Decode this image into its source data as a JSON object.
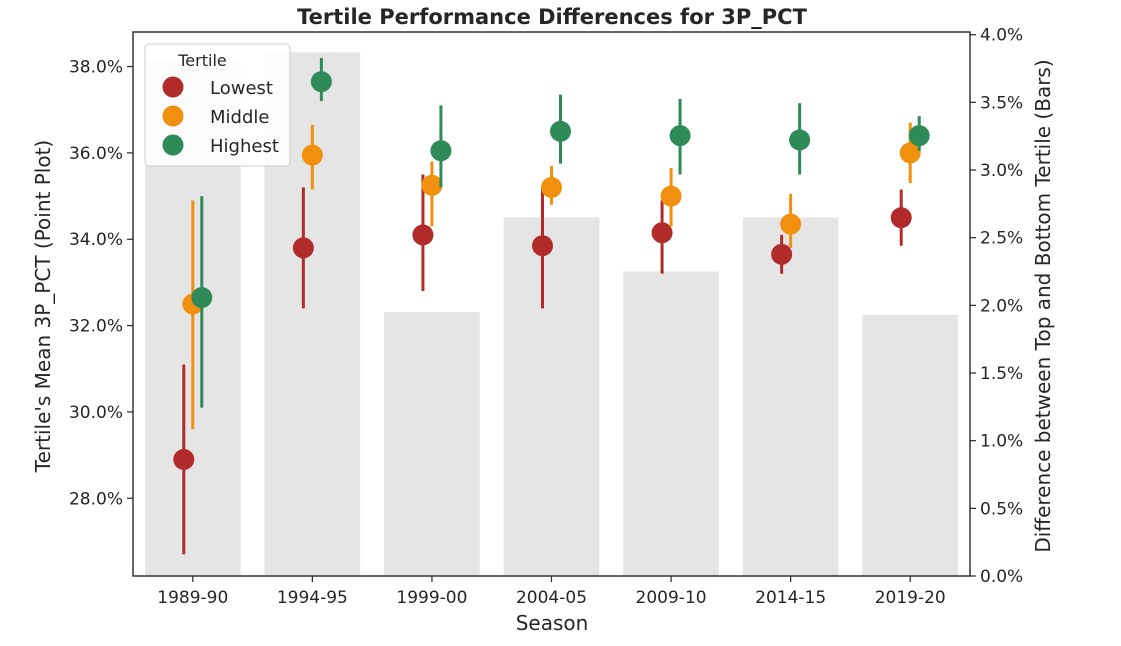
{
  "chart_data": {
    "type": "bar+point",
    "title": "Tertile Performance Differences for 3P_PCT",
    "xlabel": "Season",
    "ylabel_left": "Tertile's Mean 3P_PCT (Point Plot)",
    "ylabel_right": "Difference between Top and Bottom Tertile (Bars)",
    "categories": [
      "1989-90",
      "1994-95",
      "1999-00",
      "2004-05",
      "2009-10",
      "2014-15",
      "2019-20"
    ],
    "left_axis": {
      "ylim": [
        26.2,
        38.8
      ],
      "ticks": [
        28.0,
        30.0,
        32.0,
        34.0,
        36.0,
        38.0
      ],
      "tick_labels": [
        "28.0%",
        "30.0%",
        "32.0%",
        "34.0%",
        "36.0%",
        "38.0%"
      ]
    },
    "right_axis": {
      "ylim": [
        0.0,
        4.02
      ],
      "ticks": [
        0.0,
        0.5,
        1.0,
        1.5,
        2.0,
        2.5,
        3.0,
        3.5,
        4.0
      ],
      "tick_labels": [
        "0.0%",
        "0.5%",
        "1.0%",
        "1.5%",
        "2.0%",
        "2.5%",
        "3.0%",
        "3.5%",
        "4.0%"
      ]
    },
    "bars": {
      "color": "#e5e5e5",
      "values": [
        3.8,
        3.87,
        1.95,
        2.65,
        2.25,
        2.65,
        1.93
      ]
    },
    "legend": {
      "title": "Tertile",
      "position": "top-left"
    },
    "series": [
      {
        "name": "Lowest",
        "color": "#b22b2b",
        "values": [
          28.9,
          33.8,
          34.1,
          33.85,
          34.15,
          33.65,
          34.5
        ],
        "ci_low": [
          26.7,
          32.4,
          32.8,
          32.4,
          33.2,
          33.2,
          33.85
        ],
        "ci_high": [
          31.1,
          35.2,
          35.5,
          35.2,
          34.9,
          34.1,
          35.15
        ]
      },
      {
        "name": "Middle",
        "color": "#f0900e",
        "values": [
          32.5,
          35.95,
          35.25,
          35.2,
          35.0,
          34.35,
          36.0
        ],
        "ci_low": [
          29.6,
          35.15,
          34.3,
          34.8,
          34.3,
          33.8,
          35.3
        ],
        "ci_high": [
          34.9,
          36.65,
          35.8,
          35.7,
          35.65,
          35.05,
          36.7
        ]
      },
      {
        "name": "Highest",
        "color": "#2e8b57",
        "values": [
          32.65,
          37.65,
          36.05,
          36.5,
          36.4,
          36.3,
          36.4
        ],
        "ci_low": [
          30.1,
          37.2,
          35.2,
          35.75,
          35.5,
          35.5,
          36.05
        ],
        "ci_high": [
          35.0,
          38.2,
          37.1,
          37.35,
          37.25,
          37.15,
          36.85
        ]
      }
    ]
  }
}
